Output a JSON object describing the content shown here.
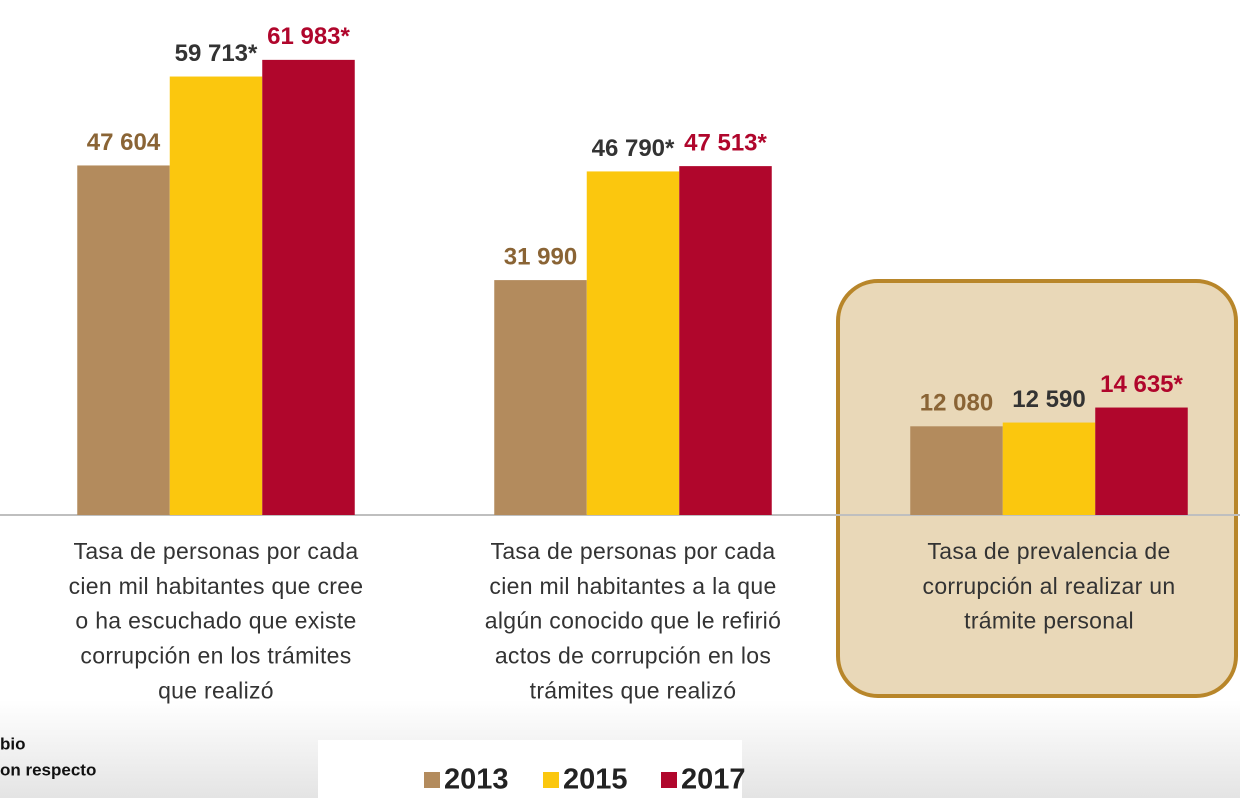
{
  "chart_data": {
    "type": "bar",
    "categories": [
      [
        "Tasa de personas por cada",
        "cien mil habitantes que cree",
        "o ha escuchado que existe",
        "corrupción en los trámites",
        "que realizó"
      ],
      [
        "Tasa de personas por cada",
        "cien mil habitantes a la que",
        "algún conocido que le refirió",
        "actos de corrupción en los",
        "trámites que realizó"
      ],
      [
        "Tasa de prevalencia de",
        "corrupción al realizar un",
        "trámite personal"
      ]
    ],
    "series": [
      {
        "name": "2013",
        "color": "#b38b5d",
        "label_color": "#8a6435",
        "values": [
          47604,
          31990,
          12080
        ],
        "value_labels": [
          "47 604",
          "31 990",
          "12 080"
        ]
      },
      {
        "name": "2015",
        "color": "#fbc70e",
        "label_color": "#333333",
        "values": [
          59713,
          46790,
          12590
        ],
        "value_labels": [
          "59 713*",
          "46 790*",
          "12 590"
        ]
      },
      {
        "name": "2017",
        "color": "#b0062c",
        "label_color": "#b0062c",
        "values": [
          61983,
          47513,
          14635
        ],
        "value_labels": [
          "61 983*",
          "47 513*",
          "14 635*"
        ]
      }
    ],
    "ylim": [
      0,
      70000
    ],
    "highlighted_category": 2,
    "notes": [
      "bio",
      "on respecto"
    ]
  }
}
